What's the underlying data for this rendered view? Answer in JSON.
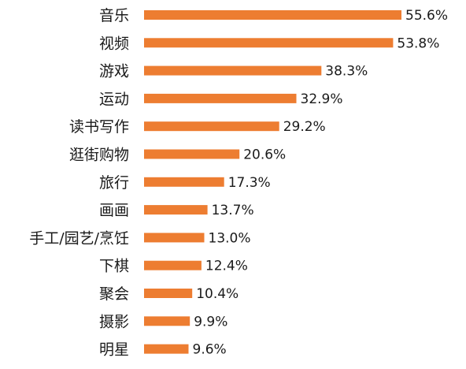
{
  "chart_data": {
    "type": "bar",
    "orientation": "horizontal",
    "categories": [
      "音乐",
      "视频",
      "游戏",
      "运动",
      "读书写作",
      "逛街购物",
      "旅行",
      "画画",
      "手工/园艺/烹饪",
      "下棋",
      "聚会",
      "摄影",
      "明星"
    ],
    "values": [
      55.6,
      53.8,
      38.3,
      32.9,
      29.2,
      20.6,
      17.3,
      13.7,
      13.0,
      12.4,
      10.4,
      9.9,
      9.6
    ],
    "value_labels": [
      "55.6%",
      "53.8%",
      "38.3%",
      "32.9%",
      "29.2%",
      "20.6%",
      "17.3%",
      "13.7%",
      "13.0%",
      "12.4%",
      "10.4%",
      "9.9%",
      "9.6%"
    ],
    "unit": "%",
    "title": "",
    "xlabel": "",
    "ylabel": "",
    "xlim": [
      0,
      55.6
    ],
    "grid": false,
    "legend": "none",
    "colors": {
      "bar": "#ED7D31",
      "text": "#1a1a1a",
      "background": "#ffffff"
    }
  }
}
